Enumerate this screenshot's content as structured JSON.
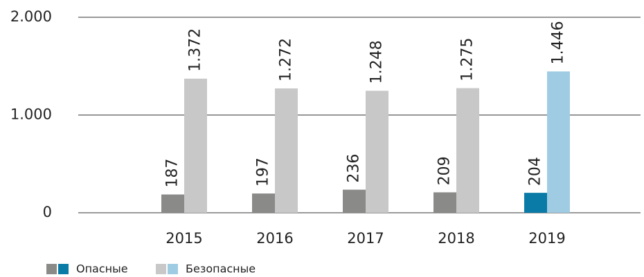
{
  "chart_data": {
    "type": "bar",
    "categories": [
      "2015",
      "2016",
      "2017",
      "2018",
      "2019"
    ],
    "series": [
      {
        "name": "Опасные",
        "colors": [
          "#8a8a89",
          "#8a8a89",
          "#8a8a89",
          "#8a8a89",
          "#0a7aa6"
        ],
        "values": [
          187,
          197,
          236,
          209,
          204
        ],
        "value_labels": [
          "187",
          "197",
          "236",
          "209",
          "204"
        ]
      },
      {
        "name": "Безопасные",
        "colors": [
          "#c8c8c8",
          "#c8c8c8",
          "#c8c8c8",
          "#c8c8c8",
          "#9fcce3"
        ],
        "values": [
          1372,
          1272,
          1248,
          1275,
          1446
        ],
        "value_labels": [
          "1.372",
          "1.272",
          "1.248",
          "1.275",
          "1.446"
        ]
      }
    ],
    "ylim": [
      0,
      2000
    ],
    "yticks": [
      0,
      {
        "value": 1000,
        "label": "1.000"
      },
      {
        "value": 2000,
        "label": "2.000"
      }
    ],
    "grid": true
  }
}
